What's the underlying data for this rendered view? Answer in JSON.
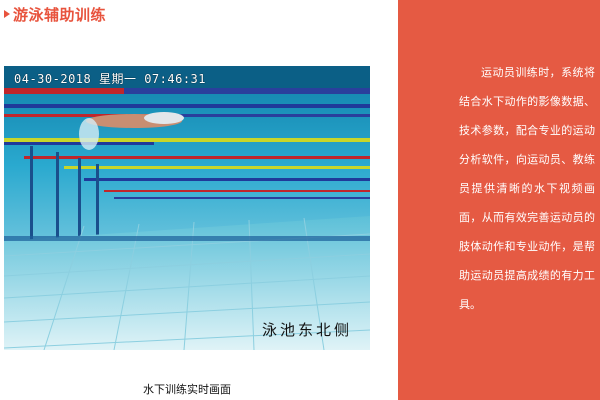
{
  "page": {
    "title": "游泳辅助训练",
    "caption": "水下训练实时画面"
  },
  "video": {
    "timestamp": "04-30-2018 星期一 07:46:31",
    "location_overlay": "泳池东北侧",
    "icons": [
      "underwater-pool-scene"
    ]
  },
  "panel": {
    "paragraph": "运动员训练时，系统将结合水下动作的影像数据、技术参数，配合专业的运动分析软件，向运动员、教练员提供清晰的水下视频画面，从而有效完善运动员的肢体动作和专业动作，是帮助运动员提高成绩的有力工具。"
  },
  "colors": {
    "accent": "#e8533d",
    "panel_background": "#e55a43",
    "water": "#1fa2c6"
  }
}
